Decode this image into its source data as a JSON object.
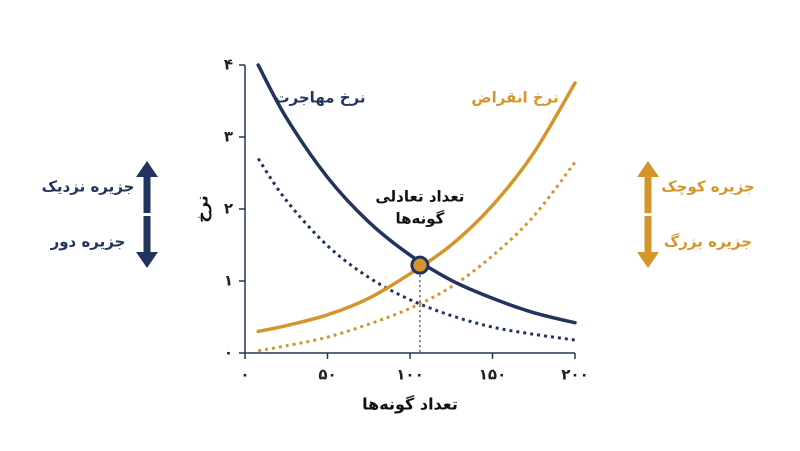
{
  "chart_data": {
    "type": "line",
    "x_label": "تعداد گونه‌ها",
    "y_label": "نرخ",
    "xlim": [
      0,
      200
    ],
    "ylim": [
      0,
      4
    ],
    "xticks": [
      {
        "value": 0,
        "label": "۰"
      },
      {
        "value": 50,
        "label": "۵۰"
      },
      {
        "value": 100,
        "label": "۱۰۰"
      },
      {
        "value": 150,
        "label": "۱۵۰"
      },
      {
        "value": 200,
        "label": "۲۰۰"
      }
    ],
    "yticks": [
      {
        "value": 0,
        "label": "۰"
      },
      {
        "value": 1,
        "label": "۱"
      },
      {
        "value": 2,
        "label": "۲"
      },
      {
        "value": 3,
        "label": "۳"
      },
      {
        "value": 4,
        "label": "۴"
      }
    ],
    "axis_color": "#22345e",
    "series": [
      {
        "name": "نرخ مهاجرت",
        "color": "#22345e",
        "style": "solid",
        "x": [
          8,
          25,
          50,
          75,
          100,
          125,
          150,
          175,
          200
        ],
        "values": [
          4.0,
          3.27,
          2.44,
          1.82,
          1.36,
          1.01,
          0.76,
          0.56,
          0.42
        ]
      },
      {
        "name": "نرخ انقراض",
        "color": "#d4962a",
        "style": "solid",
        "x": [
          8,
          25,
          50,
          75,
          100,
          125,
          150,
          175,
          200
        ],
        "values": [
          0.3,
          0.38,
          0.53,
          0.76,
          1.1,
          1.5,
          2.05,
          2.78,
          3.75
        ]
      },
      {
        "color": "#22345e",
        "style": "dotted",
        "x": [
          8,
          25,
          50,
          75,
          100,
          125,
          150,
          175,
          200
        ],
        "values": [
          2.7,
          2.12,
          1.49,
          1.05,
          0.74,
          0.52,
          0.36,
          0.26,
          0.18
        ]
      },
      {
        "color": "#d4962a",
        "style": "dotted",
        "x": [
          8,
          25,
          50,
          75,
          100,
          125,
          150,
          175,
          200
        ],
        "values": [
          0.03,
          0.1,
          0.22,
          0.4,
          0.62,
          0.92,
          1.35,
          1.9,
          2.65
        ]
      }
    ],
    "equilibrium": {
      "x": 106,
      "y": 1.22,
      "label": [
        "تعداد تعادلی",
        "گونه‌ها"
      ],
      "color": "#d4962a"
    },
    "side_labels": [
      {
        "text": "جزیره نزدیک",
        "color": "#22345e",
        "direction": "up",
        "side": "left"
      },
      {
        "text": "جزیره دور",
        "color": "#22345e",
        "direction": "down",
        "side": "left"
      },
      {
        "text": "جزیره کوچک",
        "color": "#d4962a",
        "direction": "up",
        "side": "right"
      },
      {
        "text": "جزیره بزرگ",
        "color": "#d4962a",
        "direction": "down",
        "side": "right"
      }
    ]
  }
}
